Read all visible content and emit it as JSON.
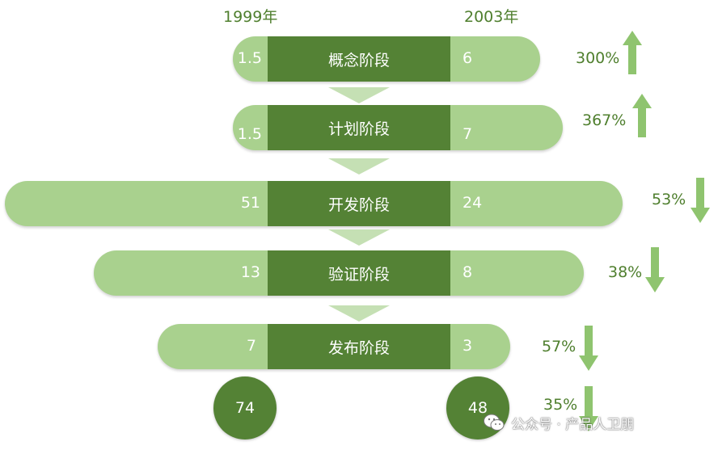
{
  "headers": {
    "left_year": "1999年",
    "right_year": "2003年"
  },
  "stages": [
    {
      "name": "概念阶段",
      "value_1999": "1.5",
      "value_2003": "6",
      "change": "300%",
      "direction": "up"
    },
    {
      "name": "计划阶段",
      "value_1999": "1.5",
      "value_2003": "7",
      "change": "367%",
      "direction": "up"
    },
    {
      "name": "开发阶段",
      "value_1999": "51",
      "value_2003": "24",
      "change": "53%",
      "direction": "down"
    },
    {
      "name": "验证阶段",
      "value_1999": "13",
      "value_2003": "8",
      "change": "38%",
      "direction": "down"
    },
    {
      "name": "发布阶段",
      "value_1999": "7",
      "value_2003": "3",
      "change": "57%",
      "direction": "down"
    }
  ],
  "totals": {
    "value_1999": "74",
    "value_2003": "48",
    "change": "35%",
    "direction": "down"
  },
  "watermark": {
    "icon": "wechat-icon",
    "text": "公众号 · 产品人卫朋"
  },
  "colors": {
    "dark_green": "#548235",
    "light_green": "#a9d18e",
    "connector_green": "#c5e0b4",
    "arrow_green": "#8fc46f",
    "text_green": "#4f7f2e"
  }
}
